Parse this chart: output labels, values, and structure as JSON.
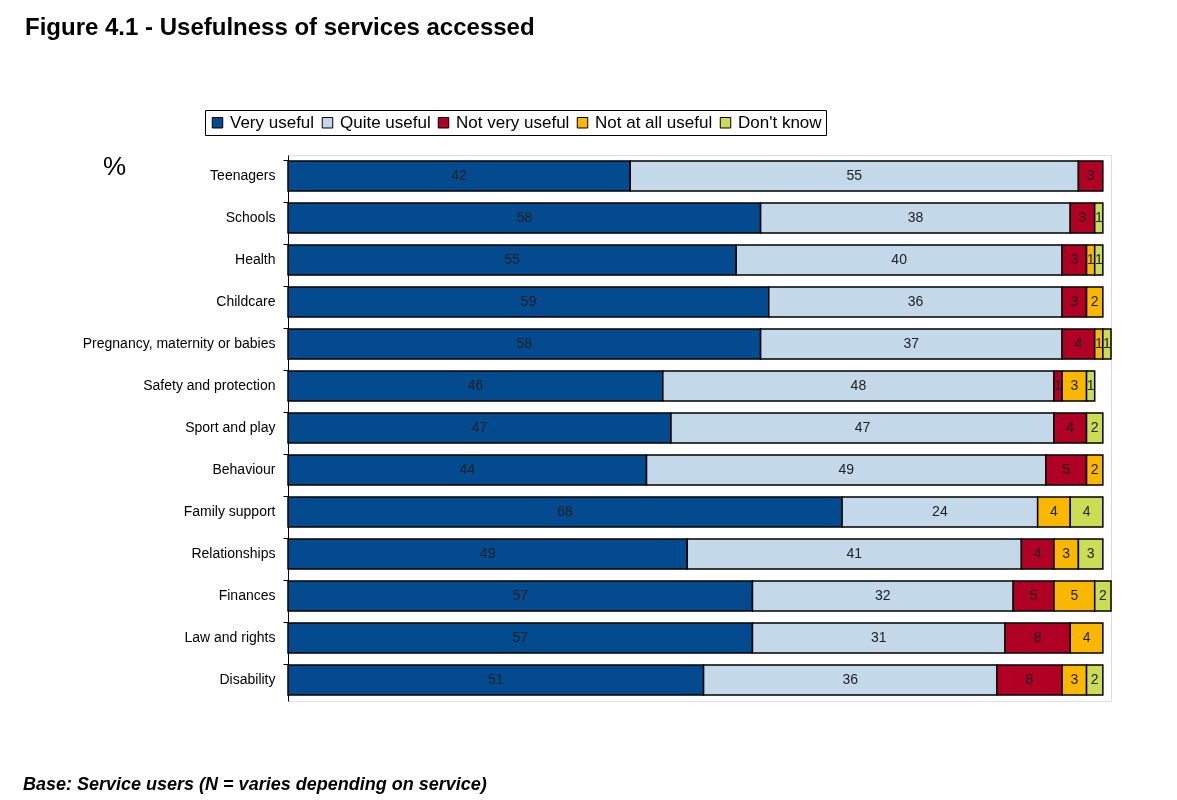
{
  "chart_data": {
    "type": "bar",
    "orientation": "horizontal",
    "stacked": true,
    "data_labels": true,
    "legend": "top",
    "grid": false,
    "title": "Figure 4.1 - Usefulness of services accessed",
    "annotations": [
      "%",
      "Base: Service users (N = varies depending on service)"
    ],
    "categories": [
      "Teenagers",
      "Schools",
      "Health",
      "Childcare",
      "Pregnancy, maternity or babies",
      "Safety and protection",
      "Sport and play",
      "Behaviour",
      "Family support",
      "Relationships",
      "Finances",
      "Law and rights",
      "Disability"
    ],
    "series": [
      {
        "name": "Very useful",
        "color": "#034a8f",
        "values": [
          42,
          58,
          55,
          59,
          58,
          46,
          47,
          44,
          68,
          49,
          57,
          57,
          51
        ]
      },
      {
        "name": "Quite useful",
        "color": "#c3d8e8",
        "values": [
          55,
          38,
          40,
          36,
          37,
          48,
          47,
          49,
          24,
          41,
          32,
          31,
          36
        ]
      },
      {
        "name": "Not very useful",
        "color": "#b00024",
        "values": [
          3,
          3,
          3,
          3,
          4,
          1,
          4,
          5,
          null,
          4,
          5,
          8,
          8
        ]
      },
      {
        "name": "Not at all useful",
        "color": "#fab700",
        "values": [
          null,
          null,
          1,
          2,
          1,
          3,
          null,
          2,
          4,
          3,
          5,
          4,
          3
        ]
      },
      {
        "name": "Don't know",
        "color": "#cadd55",
        "values": [
          null,
          1,
          1,
          null,
          1,
          1,
          2,
          null,
          4,
          3,
          2,
          null,
          2
        ]
      }
    ]
  }
}
